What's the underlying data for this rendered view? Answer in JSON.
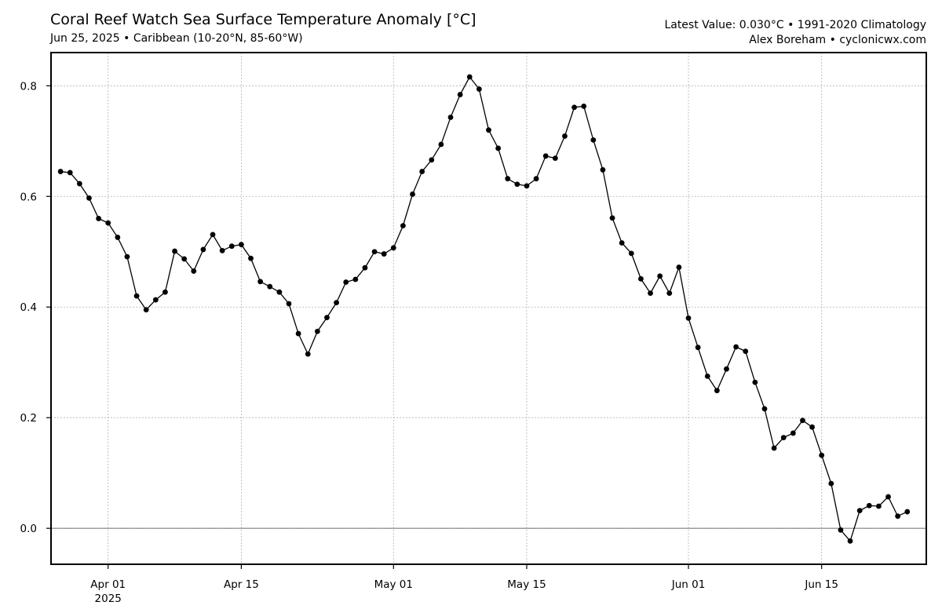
{
  "header": {
    "title": "Coral Reef Watch Sea Surface Temperature Anomaly [°C]",
    "subtitle": "Jun 25, 2025 • Caribbean (10-20°N, 85-60°W)",
    "info_line1": "Latest Value: 0.030°C • 1991-2020 Climatology",
    "info_line2": "Alex Boreham • cyclonicwx.com"
  },
  "chart_data": {
    "type": "line",
    "title": "Coral Reef Watch Sea Surface Temperature Anomaly [°C]",
    "xlabel": "",
    "ylabel": "",
    "x_start": "2025-03-27",
    "x_end": "2025-06-25",
    "xlim": [
      "2025-03-26",
      "2025-06-26"
    ],
    "ylim": [
      -0.065,
      0.86
    ],
    "grid": true,
    "zero_line": true,
    "line_color": "#000000",
    "marker": "circle",
    "yticks": [
      {
        "value": 0.0,
        "label": "0.0"
      },
      {
        "value": 0.2,
        "label": "0.2"
      },
      {
        "value": 0.4,
        "label": "0.4"
      },
      {
        "value": 0.6,
        "label": "0.6"
      },
      {
        "value": 0.8,
        "label": "0.8"
      }
    ],
    "xticks": [
      {
        "date": "2025-04-01",
        "label": "Apr 01",
        "sublabel": "2025"
      },
      {
        "date": "2025-04-15",
        "label": "Apr 15",
        "sublabel": ""
      },
      {
        "date": "2025-05-01",
        "label": "May 01",
        "sublabel": ""
      },
      {
        "date": "2025-05-15",
        "label": "May 15",
        "sublabel": ""
      },
      {
        "date": "2025-06-01",
        "label": "Jun 01",
        "sublabel": ""
      },
      {
        "date": "2025-06-15",
        "label": "Jun 15",
        "sublabel": ""
      }
    ],
    "series": [
      {
        "values": [
          0.645,
          0.643,
          0.623,
          0.597,
          0.56,
          0.552,
          0.526,
          0.491,
          0.42,
          0.395,
          0.413,
          0.427,
          0.501,
          0.487,
          0.465,
          0.504,
          0.531,
          0.502,
          0.51,
          0.513,
          0.488,
          0.446,
          0.437,
          0.427,
          0.406,
          0.352,
          0.315,
          0.356,
          0.381,
          0.408,
          0.445,
          0.45,
          0.471,
          0.5,
          0.496,
          0.507,
          0.547,
          0.604,
          0.645,
          0.666,
          0.694,
          0.743,
          0.784,
          0.816,
          0.794,
          0.72,
          0.687,
          0.632,
          0.622,
          0.619,
          0.632,
          0.673,
          0.669,
          0.709,
          0.761,
          0.763,
          0.702,
          0.648,
          0.561,
          0.516,
          0.497,
          0.451,
          0.425,
          0.456,
          0.425,
          0.472,
          0.38,
          0.327,
          0.275,
          0.249,
          0.288,
          0.328,
          0.32,
          0.264,
          0.216,
          0.145,
          0.164,
          0.172,
          0.195,
          0.183,
          0.132,
          0.081,
          -0.003,
          -0.023,
          0.032,
          0.041,
          0.04,
          0.057,
          0.022,
          0.03
        ]
      }
    ]
  }
}
